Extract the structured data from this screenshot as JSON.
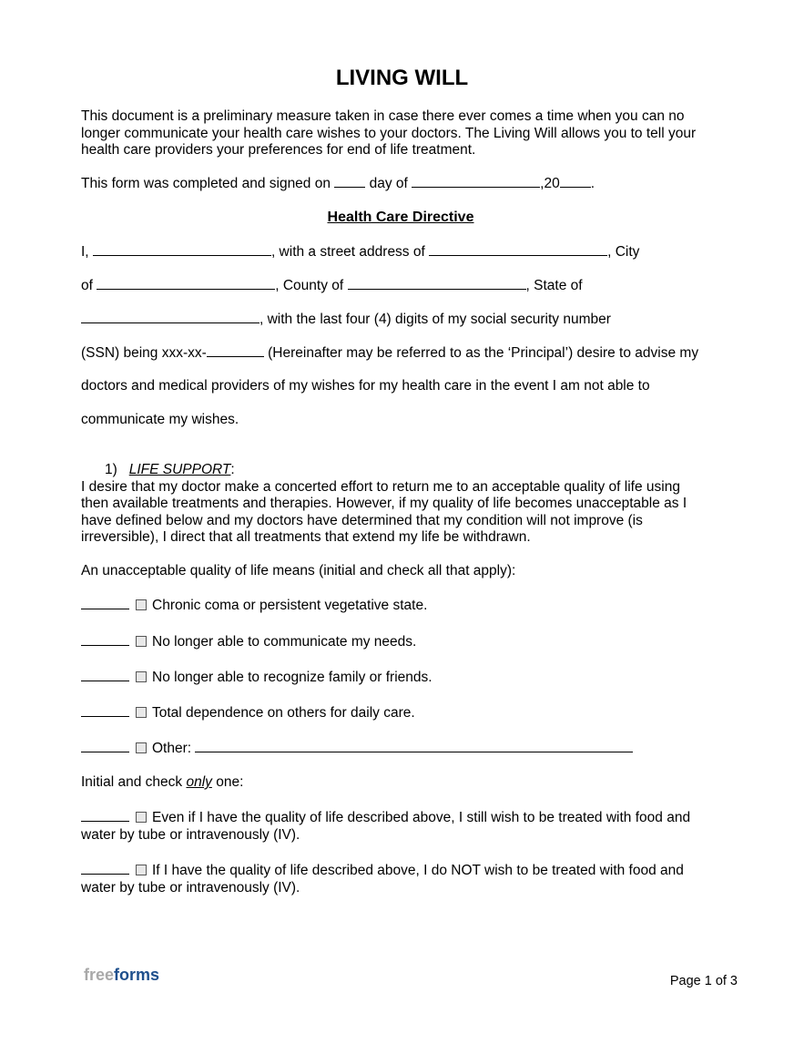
{
  "title": "LIVING WILL",
  "intro": [
    "This document is a preliminary measure taken in case there ever comes a time when you can no",
    "longer communicate your health care wishes to your doctors. The Living Will allows you to tell your",
    "health care providers your preferences for end of life treatment."
  ],
  "signed": {
    "pre": "This form was completed and signed on",
    "mid": "day of",
    "year": ",20",
    "end": "."
  },
  "section_title": "Health Care Directive",
  "directive": {
    "l1a": "I,",
    "l1b": ", with a street address of",
    "l1c": ", City",
    "l2a": "of",
    "l2b": ", County of",
    "l2c": ", State of",
    "l3": ", with the last four (4) digits of my social security number",
    "l4a": "(SSN) being xxx-xx-",
    "l4b": " (Hereinafter may be referred to as the ‘Principal’) desire to advise my",
    "l5": "doctors and medical providers of my wishes for my health care in the event I am not able to",
    "l6": "communicate my wishes."
  },
  "life_support": {
    "number": "1)",
    "heading": "LIFE SUPPORT",
    "colon": ":",
    "para": [
      "I desire that my doctor make a concerted effort to return me to an acceptable quality of life using",
      "then available treatments and therapies. However, if my quality of life becomes unacceptable as I",
      "have defined below and my doctors have determined that my condition will not improve (is",
      "irreversible), I direct that all treatments that extend my life be withdrawn."
    ],
    "list_intro": "An unacceptable quality of life means (initial and check all that apply):",
    "options": [
      "Chronic coma or persistent vegetative state.",
      "No longer able to communicate my needs.",
      "No longer able to recognize family or friends.",
      "Total dependence on others for daily care.",
      "Other:"
    ],
    "only_pre": "Initial and check ",
    "only_em": "only",
    "only_post": " one:",
    "choices": [
      [
        "Even if I have the quality of life described above, I still wish to be treated with food and",
        "water by tube or intravenously (IV)."
      ],
      [
        "If I have the quality of life described above, I do NOT wish to be treated with food and",
        "water by tube or intravenously (IV)."
      ]
    ]
  },
  "footer": {
    "logo_a": "free",
    "logo_b": "forms",
    "page": "Page 1 of 3"
  },
  "colors": {
    "field": "#d6dcfc",
    "logo_blue": "#1e4f8c",
    "logo_gray": "#a9a9a9"
  }
}
